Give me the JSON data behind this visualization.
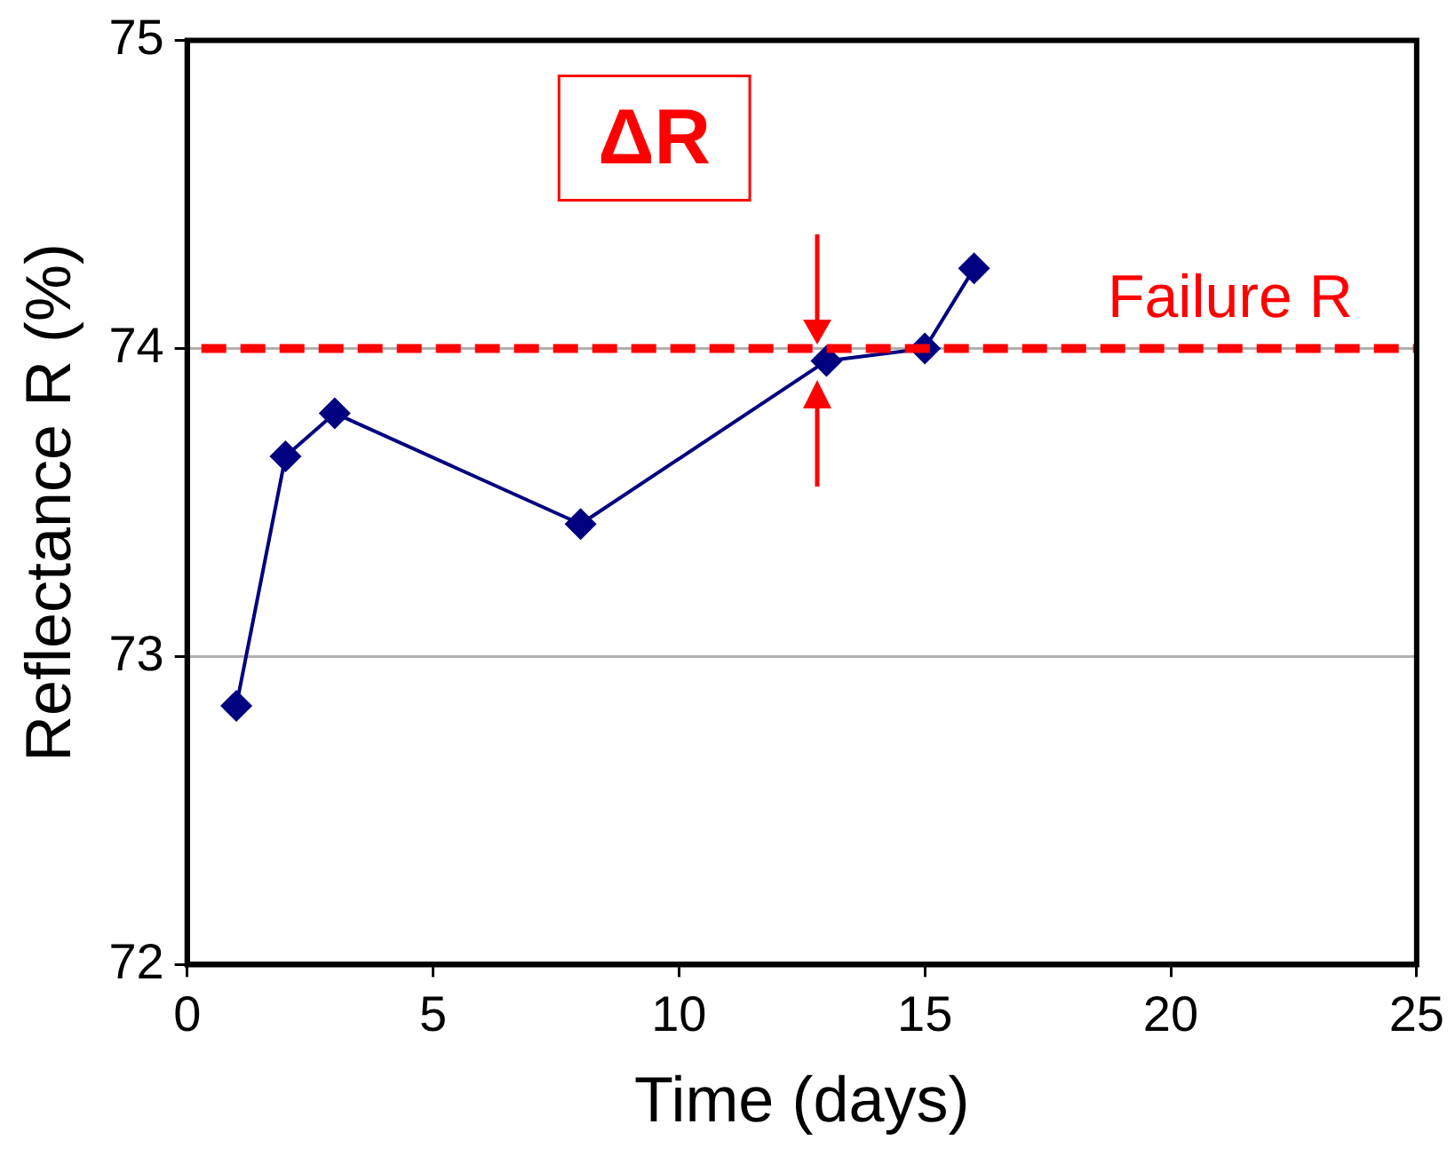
{
  "chart_data": {
    "type": "line",
    "xlabel": "Time (days)",
    "ylabel": "Reflectance R (%)",
    "x": [
      1,
      2,
      3,
      8,
      13,
      15,
      16
    ],
    "series": [
      {
        "color": "#000080",
        "values": [
          72.84,
          73.65,
          73.79,
          73.43,
          73.96,
          74.0,
          74.26
        ]
      }
    ],
    "xlim": [
      0,
      25
    ],
    "xticks": [
      0,
      5,
      10,
      15,
      20,
      25
    ],
    "ylim": [
      72,
      75
    ],
    "yticks": [
      72,
      73,
      74,
      75
    ],
    "ref_lines": [
      {
        "axis": "y",
        "value": 74,
        "label": "Failure R",
        "color": "#ff0000",
        "line_style": "dashed"
      }
    ],
    "annotations": [
      "ΔR"
    ],
    "grid": "y",
    "legend": false,
    "marker": "diamond",
    "line_style": "solid"
  }
}
